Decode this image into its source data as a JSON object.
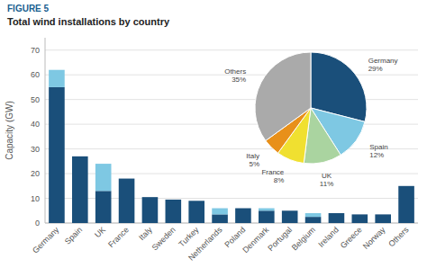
{
  "chart_data": [
    {
      "type": "bar",
      "subtitle": "FIGURE 5",
      "title": "Total wind installations by country",
      "ylabel": "Capacity (GW)",
      "categories": [
        "Germany",
        "Spain",
        "UK",
        "France",
        "Italy",
        "Sweden",
        "Turkey",
        "Netherlands",
        "Poland",
        "Denmark",
        "Portugal",
        "Belgium",
        "Ireland",
        "Greece",
        "Norway",
        "Others"
      ],
      "stacked": true,
      "series": [
        {
          "color": "#1a4f7a",
          "values": [
            55,
            27,
            13,
            18,
            10.5,
            9.5,
            9,
            3.5,
            6,
            5,
            5,
            2.5,
            4,
            3.5,
            3.5,
            15
          ]
        },
        {
          "color": "#7ec8e3",
          "values": [
            7,
            0,
            11,
            0,
            0,
            0,
            0,
            2.5,
            0,
            1,
            0,
            1.5,
            0,
            0,
            0,
            0
          ]
        }
      ],
      "ylim": [
        0,
        75
      ],
      "yticks": [
        0,
        10,
        20,
        30,
        40,
        50,
        60,
        70
      ],
      "grid": true
    },
    {
      "type": "pie",
      "categories": [
        "Germany",
        "Spain",
        "UK",
        "France",
        "Italy",
        "Others"
      ],
      "values": [
        29,
        12,
        11,
        8,
        5,
        35
      ],
      "colors": [
        "#1a4f7a",
        "#7ec8e3",
        "#aad4a0",
        "#f0e030",
        "#e8901a",
        "#aaaaaa"
      ],
      "data_labels": true,
      "value_labels": [
        "29%",
        "12%",
        "11%",
        "8%",
        "5%",
        "35%"
      ]
    }
  ]
}
